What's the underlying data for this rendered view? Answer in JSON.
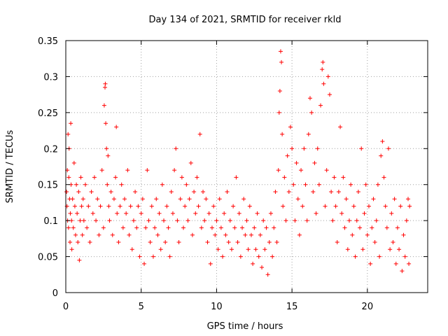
{
  "chart_data": {
    "type": "scatter",
    "title": "Day 134 of 2021, SRMTID for receiver rkld",
    "xlabel": "GPS time / hours",
    "ylabel": "SRMTID / TECUs",
    "xlim": [
      0,
      24
    ],
    "ylim": [
      0,
      0.35
    ],
    "xticks": [
      0,
      5,
      10,
      15,
      20
    ],
    "xtick_labels": [
      "0",
      "5",
      "10",
      "15",
      "20"
    ],
    "yticks": [
      0,
      0.05,
      0.1,
      0.15,
      0.2,
      0.25,
      0.3,
      0.35
    ],
    "ytick_labels": [
      "0",
      "0.05",
      "0.1",
      "0.15",
      "0.2",
      "0.25",
      "0.3",
      "0.35"
    ],
    "grid": true,
    "marker": "+",
    "color": "#ff0000",
    "series": [
      {
        "name": "SRMTID",
        "points": [
          [
            0.05,
            0.14
          ],
          [
            0.08,
            0.12
          ],
          [
            0.1,
            0.17
          ],
          [
            0.12,
            0.1
          ],
          [
            0.15,
            0.22
          ],
          [
            0.18,
            0.09
          ],
          [
            0.2,
            0.16
          ],
          [
            0.22,
            0.2
          ],
          [
            0.25,
            0.13
          ],
          [
            0.28,
            0.07
          ],
          [
            0.3,
            0.11
          ],
          [
            0.33,
            0.235
          ],
          [
            0.35,
            0.15
          ],
          [
            0.38,
            0.1
          ],
          [
            0.4,
            0.06
          ],
          [
            0.45,
            0.13
          ],
          [
            0.5,
            0.09
          ],
          [
            0.55,
            0.18
          ],
          [
            0.6,
            0.12
          ],
          [
            0.65,
            0.08
          ],
          [
            0.7,
            0.15
          ],
          [
            0.75,
            0.11
          ],
          [
            0.8,
            0.07
          ],
          [
            0.85,
            0.14
          ],
          [
            0.9,
            0.045
          ],
          [
            0.95,
            0.1
          ],
          [
            1.0,
            0.16
          ],
          [
            1.05,
            0.12
          ],
          [
            1.1,
            0.08
          ],
          [
            1.15,
            0.13
          ],
          [
            1.2,
            0.1
          ],
          [
            1.3,
            0.15
          ],
          [
            1.4,
            0.09
          ],
          [
            1.5,
            0.12
          ],
          [
            1.6,
            0.07
          ],
          [
            1.7,
            0.14
          ],
          [
            1.8,
            0.11
          ],
          [
            1.9,
            0.16
          ],
          [
            2.0,
            0.1
          ],
          [
            2.1,
            0.13
          ],
          [
            2.2,
            0.08
          ],
          [
            2.3,
            0.12
          ],
          [
            2.4,
            0.17
          ],
          [
            2.5,
            0.09
          ],
          [
            2.55,
            0.26
          ],
          [
            2.6,
            0.285
          ],
          [
            2.62,
            0.29
          ],
          [
            2.65,
            0.235
          ],
          [
            2.7,
            0.2
          ],
          [
            2.75,
            0.15
          ],
          [
            2.8,
            0.19
          ],
          [
            2.85,
            0.12
          ],
          [
            2.9,
            0.1
          ],
          [
            3.0,
            0.14
          ],
          [
            3.1,
            0.08
          ],
          [
            3.2,
            0.13
          ],
          [
            3.3,
            0.16
          ],
          [
            3.35,
            0.23
          ],
          [
            3.4,
            0.11
          ],
          [
            3.5,
            0.07
          ],
          [
            3.6,
            0.12
          ],
          [
            3.7,
            0.15
          ],
          [
            3.8,
            0.09
          ],
          [
            3.9,
            0.13
          ],
          [
            4.0,
            0.11
          ],
          [
            4.1,
            0.17
          ],
          [
            4.2,
            0.08
          ],
          [
            4.3,
            0.12
          ],
          [
            4.4,
            0.06
          ],
          [
            4.5,
            0.1
          ],
          [
            4.6,
            0.14
          ],
          [
            4.7,
            0.09
          ],
          [
            4.8,
            0.12
          ],
          [
            4.9,
            0.05
          ],
          [
            5.0,
            0.11
          ],
          [
            5.1,
            0.13
          ],
          [
            5.2,
            0.04
          ],
          [
            5.3,
            0.09
          ],
          [
            5.4,
            0.17
          ],
          [
            5.5,
            0.1
          ],
          [
            5.6,
            0.07
          ],
          [
            5.7,
            0.12
          ],
          [
            5.8,
            0.05
          ],
          [
            5.9,
            0.09
          ],
          [
            6.0,
            0.13
          ],
          [
            6.1,
            0.08
          ],
          [
            6.2,
            0.11
          ],
          [
            6.3,
            0.06
          ],
          [
            6.4,
            0.15
          ],
          [
            6.5,
            0.1
          ],
          [
            6.6,
            0.07
          ],
          [
            6.7,
            0.12
          ],
          [
            6.8,
            0.09
          ],
          [
            6.9,
            0.05
          ],
          [
            7.0,
            0.14
          ],
          [
            7.1,
            0.11
          ],
          [
            7.2,
            0.17
          ],
          [
            7.3,
            0.2
          ],
          [
            7.4,
            0.1
          ],
          [
            7.5,
            0.07
          ],
          [
            7.6,
            0.13
          ],
          [
            7.7,
            0.16
          ],
          [
            7.8,
            0.09
          ],
          [
            7.9,
            0.12
          ],
          [
            8.0,
            0.15
          ],
          [
            8.1,
            0.1
          ],
          [
            8.2,
            0.13
          ],
          [
            8.3,
            0.18
          ],
          [
            8.4,
            0.08
          ],
          [
            8.5,
            0.14
          ],
          [
            8.6,
            0.11
          ],
          [
            8.7,
            0.16
          ],
          [
            8.8,
            0.12
          ],
          [
            8.9,
            0.22
          ],
          [
            9.0,
            0.09
          ],
          [
            9.1,
            0.14
          ],
          [
            9.2,
            0.1
          ],
          [
            9.3,
            0.13
          ],
          [
            9.4,
            0.07
          ],
          [
            9.5,
            0.11
          ],
          [
            9.6,
            0.04
          ],
          [
            9.7,
            0.09
          ],
          [
            9.8,
            0.12
          ],
          [
            9.9,
            0.08
          ],
          [
            10.0,
            0.1
          ],
          [
            10.1,
            0.06
          ],
          [
            10.2,
            0.13
          ],
          [
            10.3,
            0.09
          ],
          [
            10.4,
            0.05
          ],
          [
            10.5,
            0.11
          ],
          [
            10.6,
            0.08
          ],
          [
            10.7,
            0.14
          ],
          [
            10.8,
            0.07
          ],
          [
            10.9,
            0.1
          ],
          [
            11.0,
            0.06
          ],
          [
            11.1,
            0.12
          ],
          [
            11.2,
            0.09
          ],
          [
            11.3,
            0.16
          ],
          [
            11.4,
            0.07
          ],
          [
            11.5,
            0.11
          ],
          [
            11.6,
            0.05
          ],
          [
            11.7,
            0.09
          ],
          [
            11.8,
            0.13
          ],
          [
            11.9,
            0.08
          ],
          [
            12.0,
            0.1
          ],
          [
            12.1,
            0.06
          ],
          [
            12.2,
            0.12
          ],
          [
            12.3,
            0.08
          ],
          [
            12.4,
            0.04
          ],
          [
            12.5,
            0.09
          ],
          [
            12.6,
            0.06
          ],
          [
            12.7,
            0.11
          ],
          [
            12.8,
            0.05
          ],
          [
            12.9,
            0.08
          ],
          [
            13.0,
            0.035
          ],
          [
            13.1,
            0.1
          ],
          [
            13.2,
            0.06
          ],
          [
            13.3,
            0.09
          ],
          [
            13.4,
            0.025
          ],
          [
            13.5,
            0.07
          ],
          [
            13.6,
            0.11
          ],
          [
            13.7,
            0.05
          ],
          [
            13.8,
            0.09
          ],
          [
            13.9,
            0.14
          ],
          [
            14.0,
            0.07
          ],
          [
            14.1,
            0.17
          ],
          [
            14.15,
            0.25
          ],
          [
            14.2,
            0.28
          ],
          [
            14.25,
            0.335
          ],
          [
            14.3,
            0.32
          ],
          [
            14.35,
            0.22
          ],
          [
            14.4,
            0.12
          ],
          [
            14.5,
            0.16
          ],
          [
            14.6,
            0.1
          ],
          [
            14.7,
            0.19
          ],
          [
            14.8,
            0.14
          ],
          [
            14.9,
            0.23
          ],
          [
            15.0,
            0.2
          ],
          [
            15.1,
            0.15
          ],
          [
            15.2,
            0.1
          ],
          [
            15.3,
            0.18
          ],
          [
            15.4,
            0.13
          ],
          [
            15.5,
            0.08
          ],
          [
            15.6,
            0.17
          ],
          [
            15.7,
            0.12
          ],
          [
            15.8,
            0.2
          ],
          [
            15.9,
            0.15
          ],
          [
            16.0,
            0.1
          ],
          [
            16.1,
            0.22
          ],
          [
            16.2,
            0.27
          ],
          [
            16.3,
            0.25
          ],
          [
            16.4,
            0.14
          ],
          [
            16.5,
            0.18
          ],
          [
            16.6,
            0.11
          ],
          [
            16.7,
            0.2
          ],
          [
            16.8,
            0.15
          ],
          [
            16.9,
            0.26
          ],
          [
            17.0,
            0.31
          ],
          [
            17.05,
            0.32
          ],
          [
            17.1,
            0.29
          ],
          [
            17.2,
            0.12
          ],
          [
            17.3,
            0.17
          ],
          [
            17.4,
            0.3
          ],
          [
            17.5,
            0.275
          ],
          [
            17.6,
            0.14
          ],
          [
            17.7,
            0.1
          ],
          [
            17.8,
            0.16
          ],
          [
            17.9,
            0.12
          ],
          [
            18.0,
            0.07
          ],
          [
            18.1,
            0.14
          ],
          [
            18.2,
            0.23
          ],
          [
            18.3,
            0.11
          ],
          [
            18.4,
            0.16
          ],
          [
            18.5,
            0.09
          ],
          [
            18.6,
            0.13
          ],
          [
            18.7,
            0.06
          ],
          [
            18.8,
            0.1
          ],
          [
            18.9,
            0.15
          ],
          [
            19.0,
            0.08
          ],
          [
            19.1,
            0.12
          ],
          [
            19.2,
            0.05
          ],
          [
            19.3,
            0.1
          ],
          [
            19.4,
            0.14
          ],
          [
            19.5,
            0.09
          ],
          [
            19.6,
            0.2
          ],
          [
            19.7,
            0.06
          ],
          [
            19.8,
            0.11
          ],
          [
            19.9,
            0.15
          ],
          [
            20.0,
            0.08
          ],
          [
            20.1,
            0.12
          ],
          [
            20.2,
            0.04
          ],
          [
            20.3,
            0.09
          ],
          [
            20.4,
            0.13
          ],
          [
            20.5,
            0.07
          ],
          [
            20.6,
            0.1
          ],
          [
            20.7,
            0.15
          ],
          [
            20.8,
            0.05
          ],
          [
            20.9,
            0.19
          ],
          [
            21.0,
            0.21
          ],
          [
            21.1,
            0.16
          ],
          [
            21.2,
            0.12
          ],
          [
            21.3,
            0.09
          ],
          [
            21.4,
            0.2
          ],
          [
            21.5,
            0.06
          ],
          [
            21.6,
            0.11
          ],
          [
            21.7,
            0.07
          ],
          [
            21.8,
            0.13
          ],
          [
            21.9,
            0.04
          ],
          [
            22.0,
            0.09
          ],
          [
            22.1,
            0.06
          ],
          [
            22.2,
            0.12
          ],
          [
            22.3,
            0.03
          ],
          [
            22.4,
            0.08
          ],
          [
            22.5,
            0.05
          ],
          [
            22.6,
            0.1
          ],
          [
            22.7,
            0.13
          ],
          [
            22.75,
            0.04
          ],
          [
            22.8,
            0.12
          ]
        ]
      }
    ]
  }
}
